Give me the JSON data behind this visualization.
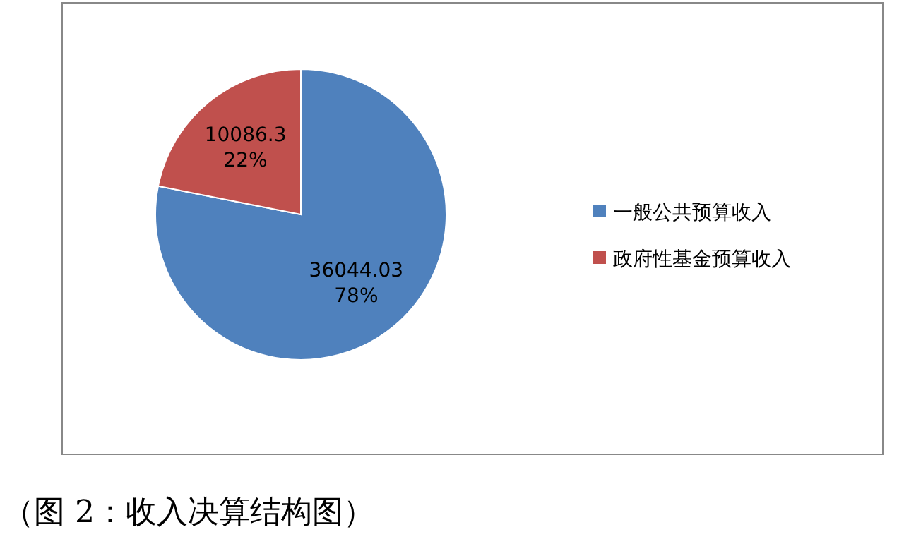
{
  "chart_data": {
    "type": "pie",
    "categories": [
      "一般公共预算收入",
      "政府性基金预算收入"
    ],
    "values": [
      36044.03,
      10086.3
    ],
    "colors": [
      "#4f81bd",
      "#c0504d"
    ],
    "value_labels": [
      "36044.03 78%",
      "10086.3 22%"
    ],
    "legend": "right",
    "annotations": [
      "（图 2：收入决算结构图）"
    ]
  }
}
